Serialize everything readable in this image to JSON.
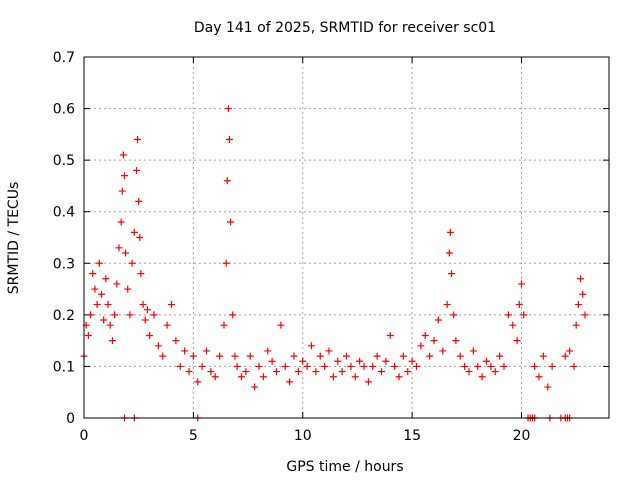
{
  "chart_data": {
    "type": "scatter",
    "title": "Day 141 of 2025, SRMTID for receiver sc01",
    "xlabel": "GPS time / hours",
    "ylabel": "SRMTID / TECUs",
    "xlim": [
      0,
      24
    ],
    "ylim": [
      0,
      0.7
    ],
    "xticks": [
      0,
      5,
      10,
      15,
      20
    ],
    "yticks": [
      0,
      0.1,
      0.2,
      0.3,
      0.4,
      0.5,
      0.6,
      0.7
    ],
    "xtick_labels": [
      "0",
      "5",
      "10",
      "15",
      "20"
    ],
    "ytick_labels": [
      "0",
      "0.1",
      "0.2",
      "0.3",
      "0.4",
      "0.5",
      "0.6",
      "0.7"
    ],
    "grid": true,
    "marker": "+",
    "color": "#ff0000",
    "series": [
      {
        "name": "SRMTID",
        "x": [
          0.0,
          0.1,
          0.2,
          0.3,
          0.4,
          0.5,
          0.6,
          0.7,
          0.8,
          0.9,
          1.0,
          1.1,
          1.2,
          1.3,
          1.4,
          1.5,
          1.6,
          1.7,
          1.75,
          1.8,
          1.85,
          1.9,
          2.0,
          2.1,
          2.2,
          2.3,
          2.4,
          2.45,
          2.5,
          2.55,
          2.6,
          2.7,
          2.8,
          2.9,
          3.0,
          3.2,
          3.4,
          3.6,
          3.8,
          4.0,
          4.2,
          4.4,
          4.6,
          4.8,
          5.0,
          5.2,
          5.4,
          5.6,
          5.8,
          6.0,
          6.2,
          6.4,
          6.5,
          6.55,
          6.6,
          6.65,
          6.7,
          6.8,
          6.9,
          7.0,
          7.2,
          7.4,
          7.6,
          7.8,
          8.0,
          8.2,
          8.4,
          8.6,
          8.8,
          9.0,
          9.2,
          9.4,
          9.6,
          9.8,
          10.0,
          10.2,
          10.4,
          10.6,
          10.8,
          11.0,
          11.2,
          11.4,
          11.6,
          11.8,
          12.0,
          12.2,
          12.4,
          12.6,
          12.8,
          13.0,
          13.2,
          13.4,
          13.6,
          13.8,
          14.0,
          14.2,
          14.4,
          14.6,
          14.8,
          15.0,
          15.2,
          15.4,
          15.6,
          15.8,
          16.0,
          16.2,
          16.4,
          16.6,
          16.7,
          16.75,
          16.8,
          16.9,
          17.0,
          17.2,
          17.4,
          17.6,
          17.8,
          18.0,
          18.2,
          18.4,
          18.6,
          18.8,
          19.0,
          19.2,
          19.4,
          19.6,
          19.8,
          19.9,
          20.0,
          20.1,
          20.6,
          20.8,
          21.0,
          21.2,
          21.4,
          22.0,
          22.2,
          22.4,
          22.5,
          22.6,
          22.7,
          22.8,
          22.9,
          1.85,
          2.3,
          5.2,
          20.3,
          20.4,
          20.5,
          20.6,
          21.3,
          21.8,
          22.0,
          22.1,
          22.2
        ],
        "y": [
          0.12,
          0.18,
          0.16,
          0.2,
          0.28,
          0.25,
          0.22,
          0.3,
          0.24,
          0.19,
          0.27,
          0.22,
          0.18,
          0.15,
          0.2,
          0.26,
          0.33,
          0.38,
          0.44,
          0.51,
          0.47,
          0.32,
          0.25,
          0.2,
          0.3,
          0.36,
          0.48,
          0.54,
          0.42,
          0.35,
          0.28,
          0.22,
          0.19,
          0.21,
          0.16,
          0.2,
          0.14,
          0.12,
          0.18,
          0.22,
          0.15,
          0.1,
          0.13,
          0.09,
          0.12,
          0.07,
          0.1,
          0.13,
          0.09,
          0.08,
          0.12,
          0.18,
          0.3,
          0.46,
          0.6,
          0.54,
          0.38,
          0.2,
          0.12,
          0.1,
          0.08,
          0.09,
          0.12,
          0.06,
          0.1,
          0.08,
          0.13,
          0.11,
          0.09,
          0.18,
          0.1,
          0.07,
          0.12,
          0.09,
          0.11,
          0.1,
          0.14,
          0.09,
          0.12,
          0.1,
          0.13,
          0.08,
          0.11,
          0.09,
          0.12,
          0.1,
          0.08,
          0.11,
          0.1,
          0.07,
          0.1,
          0.12,
          0.09,
          0.11,
          0.16,
          0.1,
          0.08,
          0.12,
          0.09,
          0.11,
          0.1,
          0.14,
          0.16,
          0.12,
          0.15,
          0.19,
          0.13,
          0.22,
          0.32,
          0.36,
          0.28,
          0.2,
          0.15,
          0.12,
          0.1,
          0.09,
          0.13,
          0.1,
          0.08,
          0.11,
          0.1,
          0.09,
          0.12,
          0.1,
          0.2,
          0.18,
          0.15,
          0.22,
          0.26,
          0.2,
          0.1,
          0.08,
          0.12,
          0.06,
          0.1,
          0.12,
          0.13,
          0.1,
          0.18,
          0.22,
          0.27,
          0.24,
          0.2,
          0.0,
          0.0,
          0.0,
          0.0,
          0.0,
          0.0,
          0.0,
          0.0,
          0.0,
          0.0,
          0.0,
          0.0
        ]
      }
    ]
  }
}
